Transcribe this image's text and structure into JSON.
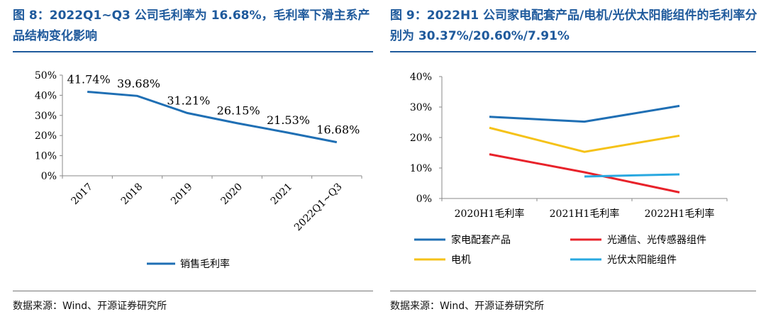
{
  "left": {
    "title": "图 8：2022Q1~Q3 公司毛利率为 16.68%，毛利率下滑主系产品结构变化影响",
    "source": "数据来源：Wind、开源证券研究所"
  },
  "right": {
    "title": "图 9：2022H1 公司家电配套产品/电机/光伏太阳能组件的毛利率分别为 30.37%/20.60%/7.91%",
    "source": "数据来源：Wind、开源证券研究所"
  },
  "chart_data": [
    {
      "type": "line",
      "categories": [
        "2017",
        "2018",
        "2019",
        "2020",
        "2021",
        "2022Q1~Q3"
      ],
      "series": [
        {
          "name": "销售毛利率",
          "values": [
            41.74,
            39.68,
            31.21,
            26.15,
            21.53,
            16.68
          ],
          "color": "#1f6fb4"
        }
      ],
      "data_labels": [
        "41.74%",
        "39.68%",
        "31.21%",
        "26.15%",
        "21.53%",
        "16.68%"
      ],
      "yticks": [
        "0%",
        "10%",
        "20%",
        "30%",
        "40%",
        "50%"
      ],
      "ylim": [
        0,
        50
      ],
      "grid": false,
      "legend": "bottom"
    },
    {
      "type": "line",
      "categories": [
        "2020H1毛利率",
        "2021H1毛利率",
        "2022H1毛利率"
      ],
      "series": [
        {
          "name": "家电配套产品",
          "values": [
            26.8,
            25.2,
            30.37
          ],
          "color": "#1f6fb4"
        },
        {
          "name": "光通信、光传感器组件",
          "values": [
            14.5,
            8.6,
            2.0
          ],
          "color": "#e8222a"
        },
        {
          "name": "电机",
          "values": [
            23.2,
            15.3,
            20.6
          ],
          "color": "#f5c218"
        },
        {
          "name": "光伏太阳能组件",
          "values": [
            null,
            7.2,
            7.91
          ],
          "color": "#29a8e0"
        }
      ],
      "yticks": [
        "0%",
        "10%",
        "20%",
        "30%",
        "40%"
      ],
      "ylim": [
        0,
        40
      ],
      "grid": false,
      "legend": "bottom"
    }
  ]
}
